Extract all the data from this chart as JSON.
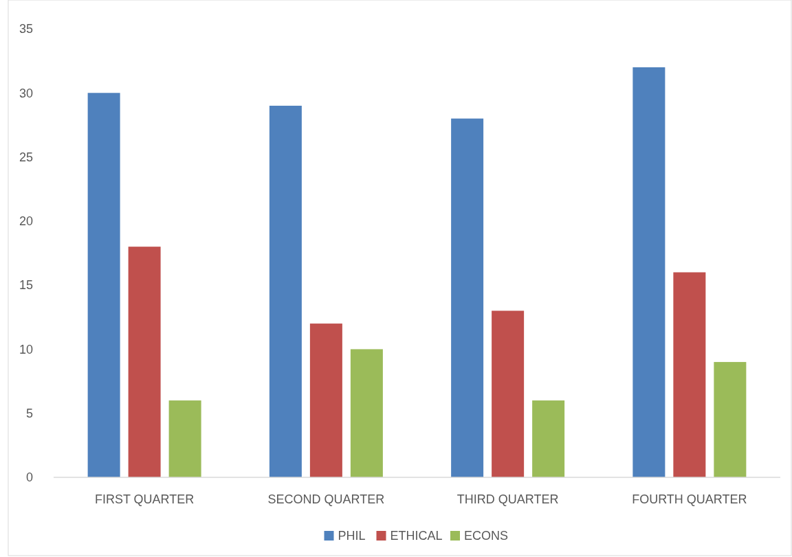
{
  "chart_data": {
    "type": "bar",
    "categories": [
      "FIRST QUARTER",
      "SECOND QUARTER",
      "THIRD QUARTER",
      "FOURTH QUARTER"
    ],
    "series": [
      {
        "name": "PHIL",
        "color": "#4f81bd",
        "values": [
          30,
          29,
          28,
          32
        ]
      },
      {
        "name": "ETHICAL",
        "color": "#c0504d",
        "values": [
          18,
          12,
          13,
          16
        ]
      },
      {
        "name": "ECONS",
        "color": "#9bbb59",
        "values": [
          6,
          10,
          6,
          9
        ]
      }
    ],
    "ylim": [
      0,
      35
    ],
    "yticks": [
      0,
      5,
      10,
      15,
      20,
      25,
      30,
      35
    ],
    "grid": false,
    "legend": "bottom"
  }
}
